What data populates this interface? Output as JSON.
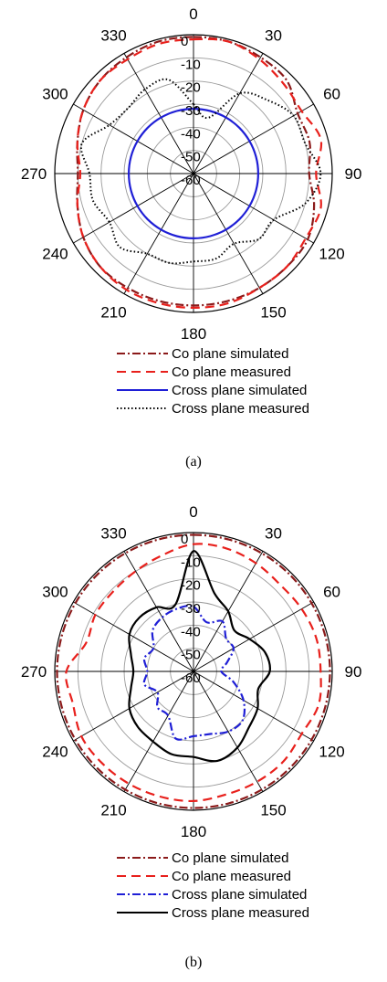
{
  "chart_data": [
    {
      "type": "polar",
      "caption": "(a)",
      "radial_ticks": [
        "0",
        "-10",
        "-20",
        "-30",
        "-40",
        "-50",
        "-60"
      ],
      "angle_labels": [
        "0",
        "30",
        "60",
        "90",
        "120",
        "150",
        "180",
        "210",
        "240",
        "270",
        "300",
        "330"
      ],
      "rlim": [
        -60,
        0
      ],
      "series": [
        {
          "name": "Co plane simulated",
          "color": "#8b1a1a",
          "style": "dashdot",
          "angles": [
            0,
            15,
            30,
            45,
            60,
            75,
            90,
            105,
            120,
            135,
            150,
            165,
            180,
            195,
            210,
            225,
            240,
            255,
            270,
            285,
            300,
            315,
            330,
            345
          ],
          "values": [
            -1,
            -1,
            -2,
            -3,
            -8,
            -8,
            -10,
            -6,
            -3,
            -3,
            -3,
            -3,
            -3,
            -3,
            -3,
            -3,
            -5,
            -8,
            -10,
            -8,
            -5,
            -3,
            -2,
            -1
          ]
        },
        {
          "name": "Co plane measured",
          "color": "#e8201c",
          "style": "dashed",
          "angles": [
            0,
            15,
            30,
            45,
            60,
            75,
            90,
            105,
            120,
            135,
            150,
            165,
            180,
            195,
            210,
            225,
            240,
            255,
            270,
            285,
            300,
            315,
            330,
            345
          ],
          "values": [
            -2,
            -1,
            -3,
            -5,
            -6,
            -3,
            -7,
            -3,
            -4,
            -3,
            -3,
            -2,
            -2,
            -2,
            -2,
            -3,
            -5,
            -8,
            -11,
            -8,
            -5,
            -3,
            -3,
            -2
          ]
        },
        {
          "name": "Cross plane simulated",
          "color": "#1f1fd6",
          "style": "solid",
          "angles": [
            0,
            15,
            30,
            45,
            60,
            75,
            90,
            105,
            120,
            135,
            150,
            165,
            180,
            195,
            210,
            225,
            240,
            255,
            270,
            285,
            300,
            315,
            330,
            345
          ],
          "values": [
            -32,
            -32,
            -32,
            -32,
            -32,
            -32,
            -32,
            -32,
            -32,
            -32,
            -32,
            -32,
            -32,
            -32,
            -32,
            -32,
            -32,
            -32,
            -32,
            -32,
            -32,
            -32,
            -32,
            -32
          ]
        },
        {
          "name": "Cross plane measured",
          "color": "#000000",
          "style": "dotted",
          "angles": [
            0,
            15,
            30,
            45,
            60,
            75,
            90,
            105,
            120,
            135,
            150,
            165,
            180,
            195,
            210,
            225,
            240,
            255,
            270,
            285,
            300,
            315,
            330,
            345
          ],
          "values": [
            -30,
            -35,
            -20,
            -15,
            -10,
            -10,
            -5,
            -10,
            -20,
            -20,
            -25,
            -22,
            -22,
            -20,
            -20,
            -15,
            -18,
            -15,
            -15,
            -10,
            -18,
            -20,
            -18,
            -18
          ]
        }
      ]
    },
    {
      "type": "polar",
      "caption": "(b)",
      "radial_ticks": [
        "0",
        "-10",
        "-20",
        "-30",
        "-40",
        "-50",
        "-60"
      ],
      "angle_labels": [
        "0",
        "30",
        "60",
        "90",
        "120",
        "150",
        "180",
        "210",
        "240",
        "270",
        "300",
        "330"
      ],
      "rlim": [
        -60,
        0
      ],
      "series": [
        {
          "name": "Co plane simulated",
          "color": "#8b1a1a",
          "style": "dashdot",
          "angles": [
            0,
            15,
            30,
            45,
            60,
            75,
            90,
            105,
            120,
            135,
            150,
            165,
            180,
            195,
            210,
            225,
            240,
            255,
            270,
            285,
            300,
            315,
            330,
            345
          ],
          "values": [
            -1,
            -1,
            -1,
            -1,
            -1,
            -1,
            -1,
            -1,
            -1,
            -1,
            -1,
            -1,
            -1,
            -1,
            -1,
            -1,
            -1,
            -1,
            -1,
            -1,
            -1,
            -1,
            -1,
            -1
          ]
        },
        {
          "name": "Co plane measured",
          "color": "#e8201c",
          "style": "dashed",
          "angles": [
            0,
            15,
            30,
            45,
            60,
            75,
            90,
            105,
            120,
            135,
            150,
            165,
            180,
            195,
            210,
            225,
            240,
            255,
            270,
            285,
            300,
            315,
            330,
            345
          ],
          "values": [
            -5,
            -5,
            -6,
            -7,
            -6,
            -5,
            -5,
            -4,
            -6,
            -5,
            -5,
            -5,
            -4,
            -4,
            -4,
            -4,
            -4,
            -6,
            -5,
            -12,
            -11,
            -11,
            -10,
            -8
          ]
        },
        {
          "name": "Cross plane simulated",
          "color": "#1f1fd6",
          "style": "dashdot",
          "angles": [
            0,
            15,
            30,
            45,
            60,
            75,
            90,
            105,
            120,
            135,
            150,
            165,
            180,
            195,
            210,
            225,
            240,
            255,
            270,
            285,
            300,
            315,
            330,
            345
          ],
          "values": [
            -32,
            -38,
            -35,
            -40,
            -40,
            -45,
            -48,
            -42,
            -35,
            -30,
            -30,
            -32,
            -32,
            -30,
            -38,
            -38,
            -42,
            -38,
            -40,
            -38,
            -40,
            -35,
            -33,
            -32
          ]
        },
        {
          "name": "Cross plane measured",
          "color": "#000000",
          "style": "solid",
          "angles": [
            0,
            15,
            30,
            45,
            60,
            75,
            90,
            105,
            120,
            135,
            150,
            165,
            180,
            195,
            210,
            225,
            240,
            255,
            270,
            285,
            300,
            315,
            330,
            345
          ],
          "values": [
            -8,
            -25,
            -30,
            -35,
            -32,
            -28,
            -27,
            -31,
            -28,
            -26,
            -22,
            -20,
            -23,
            -23,
            -25,
            -26,
            -28,
            -32,
            -34,
            -32,
            -28,
            -27,
            -28,
            -30
          ]
        }
      ]
    }
  ]
}
